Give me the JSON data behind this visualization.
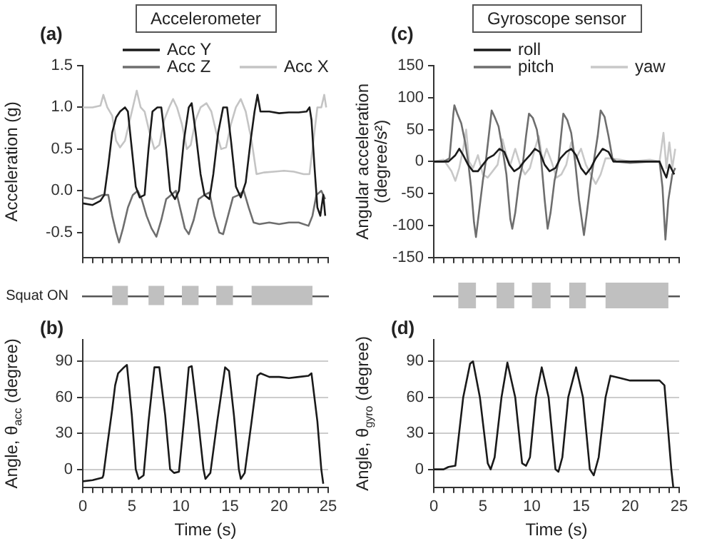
{
  "chart_data": [
    {
      "type": "line",
      "title": "Accelerometer",
      "ylabel": "Acceleration (g)",
      "annotations": [
        "(a)"
      ],
      "xlim": [
        0,
        25
      ],
      "xticks": [
        0,
        {
          "value": 1,
          "label": null
        },
        {
          "value": 2,
          "label": null
        },
        {
          "value": 3,
          "label": null
        },
        {
          "value": 4,
          "label": null
        },
        5,
        {
          "value": 6,
          "label": null
        },
        {
          "value": 7,
          "label": null
        },
        {
          "value": 8,
          "label": null
        },
        {
          "value": 9,
          "label": null
        },
        10,
        {
          "value": 11,
          "label": null
        },
        {
          "value": 12,
          "label": null
        },
        {
          "value": 13,
          "label": null
        },
        {
          "value": 14,
          "label": null
        },
        15,
        {
          "value": 16,
          "label": null
        },
        {
          "value": 17,
          "label": null
        },
        {
          "value": 18,
          "label": null
        },
        {
          "value": 19,
          "label": null
        },
        20,
        {
          "value": 21,
          "label": null
        },
        {
          "value": 22,
          "label": null
        },
        {
          "value": 23,
          "label": null
        },
        {
          "value": 24,
          "label": null
        },
        25
      ],
      "ylim": [
        -0.8,
        1.5
      ],
      "yticks": [
        {
          "value": -0.5,
          "label": "-0.5"
        },
        {
          "value": 0,
          "label": "0.0"
        },
        {
          "value": 0.5,
          "label": "0.5"
        },
        {
          "value": 1,
          "label": "1.0"
        },
        {
          "value": 1.5,
          "label": "1.5"
        }
      ],
      "tick_labels": "y",
      "legend": "top",
      "series": [
        {
          "name": "Acc Y",
          "color": "#1a1a1a",
          "x": [
            0,
            1,
            1.8,
            2.2,
            2.6,
            3,
            3.4,
            3.8,
            4.3,
            4.6,
            5,
            5.4,
            5.8,
            6.3,
            6.7,
            7.1,
            7.6,
            8,
            8.5,
            8.9,
            9.4,
            9.8,
            10.3,
            10.8,
            11.1,
            11.5,
            12,
            12.4,
            12.9,
            13.3,
            13.8,
            14.3,
            14.7,
            15.1,
            15.6,
            16.1,
            16.6,
            17.1,
            17.5,
            17.8,
            18.1,
            19,
            20,
            21,
            22,
            22.8,
            23.1,
            23.3,
            23.6,
            23.9,
            24.2,
            24.5,
            24.7
          ],
          "values": [
            -0.15,
            -0.17,
            -0.12,
            -0.05,
            0.3,
            0.7,
            0.88,
            0.95,
            1.0,
            0.95,
            0.5,
            0.05,
            -0.08,
            -0.05,
            0.5,
            0.95,
            1.0,
            1.0,
            0.5,
            0.0,
            -0.1,
            0.0,
            0.6,
            1.0,
            1.05,
            0.7,
            0.2,
            -0.05,
            -0.1,
            0.2,
            0.7,
            1.0,
            1.0,
            0.6,
            0.05,
            -0.08,
            0.1,
            0.6,
            0.95,
            1.15,
            0.95,
            0.95,
            0.93,
            0.94,
            0.94,
            0.95,
            1.0,
            0.85,
            0.3,
            -0.2,
            -0.3,
            -0.05,
            -0.3
          ]
        },
        {
          "name": "Acc Z",
          "color": "#6e6e6e",
          "x": [
            0,
            1,
            2,
            2.6,
            3,
            3.4,
            3.7,
            4.1,
            4.6,
            5.1,
            5.6,
            6,
            6.5,
            7,
            7.5,
            8,
            8.5,
            9,
            9.5,
            9.9,
            10.4,
            10.8,
            11.3,
            11.8,
            12.4,
            12.9,
            13.4,
            13.9,
            14.3,
            14.8,
            15.3,
            15.9,
            16.4,
            16.9,
            17.4,
            18,
            19,
            20,
            21,
            22,
            23,
            23.4,
            23.8,
            24.3,
            24.7
          ],
          "values": [
            -0.08,
            -0.1,
            -0.05,
            -0.05,
            -0.3,
            -0.5,
            -0.62,
            -0.45,
            -0.2,
            -0.05,
            0.0,
            -0.1,
            -0.3,
            -0.45,
            -0.55,
            -0.35,
            -0.1,
            -0.05,
            0.0,
            -0.2,
            -0.45,
            -0.52,
            -0.35,
            -0.1,
            -0.05,
            -0.02,
            -0.3,
            -0.5,
            -0.52,
            -0.3,
            -0.08,
            -0.05,
            0.0,
            -0.2,
            -0.38,
            -0.4,
            -0.38,
            -0.4,
            -0.38,
            -0.38,
            -0.42,
            -0.3,
            -0.05,
            0.0,
            -0.1
          ]
        },
        {
          "name": "Acc X",
          "color": "#c4c4c4",
          "x": [
            0,
            1,
            1.8,
            2.1,
            2.5,
            3,
            3.4,
            3.8,
            4.3,
            4.7,
            5.1,
            5.5,
            5.9,
            6.3,
            6.8,
            7.3,
            7.8,
            8.3,
            8.8,
            9.2,
            9.6,
            10.1,
            10.6,
            11,
            11.5,
            12,
            12.6,
            13.1,
            13.6,
            14.1,
            14.6,
            15.1,
            15.6,
            16.1,
            16.6,
            17.2,
            17.7,
            18.5,
            19.5,
            20.5,
            21.5,
            22.5,
            23.1,
            23.5,
            23.9,
            24.3,
            24.6,
            24.8
          ],
          "values": [
            1.0,
            1.0,
            1.02,
            1.15,
            1.0,
            0.9,
            0.6,
            0.52,
            0.6,
            0.8,
            1.0,
            1.2,
            1.0,
            0.95,
            0.7,
            0.5,
            0.55,
            0.85,
            1.0,
            1.1,
            1.0,
            0.8,
            0.5,
            0.55,
            0.85,
            1.0,
            1.05,
            0.95,
            0.7,
            0.5,
            0.52,
            0.8,
            1.0,
            1.1,
            0.95,
            0.6,
            0.2,
            0.22,
            0.23,
            0.24,
            0.23,
            0.2,
            0.2,
            0.6,
            1.0,
            1.0,
            1.15,
            1.0
          ]
        }
      ]
    },
    {
      "type": "bar",
      "orientation": "horizontal",
      "categories": [
        "Squat ON"
      ],
      "xlim": [
        0,
        25
      ],
      "tick_labels": "y",
      "series": [
        {
          "color": "#c0c0c0",
          "values": [
            1.6
          ],
          "base": [
            3
          ]
        },
        {
          "color": "#c0c0c0",
          "values": [
            1.6
          ],
          "base": [
            6.7
          ]
        },
        {
          "color": "#c0c0c0",
          "values": [
            1.7
          ],
          "base": [
            10.1
          ]
        },
        {
          "color": "#c0c0c0",
          "values": [
            1.7
          ],
          "base": [
            13.6
          ]
        },
        {
          "color": "#c0c0c0",
          "values": [
            6.2
          ],
          "base": [
            17.2
          ]
        }
      ]
    },
    {
      "type": "line",
      "ylabel": "Angle, θ$_{acc}$ (degree)",
      "xlabel": "Time (s)",
      "annotations": [
        "(b)"
      ],
      "xlim": [
        0,
        25
      ],
      "xticks": [
        0,
        {
          "value": 1,
          "label": null
        },
        {
          "value": 2,
          "label": null
        },
        {
          "value": 3,
          "label": null
        },
        {
          "value": 4,
          "label": null
        },
        5,
        {
          "value": 6,
          "label": null
        },
        {
          "value": 7,
          "label": null
        },
        {
          "value": 8,
          "label": null
        },
        {
          "value": 9,
          "label": null
        },
        10,
        {
          "value": 11,
          "label": null
        },
        {
          "value": 12,
          "label": null
        },
        {
          "value": 13,
          "label": null
        },
        {
          "value": 14,
          "label": null
        },
        15,
        {
          "value": 16,
          "label": null
        },
        {
          "value": 17,
          "label": null
        },
        {
          "value": 18,
          "label": null
        },
        {
          "value": 19,
          "label": null
        },
        20,
        {
          "value": 21,
          "label": null
        },
        {
          "value": 22,
          "label": null
        },
        {
          "value": 23,
          "label": null
        },
        {
          "value": 24,
          "label": null
        },
        25
      ],
      "ylim": [
        -15,
        108
      ],
      "yticks": [
        0,
        30,
        60,
        90
      ],
      "grid": "y",
      "series": [
        {
          "color": "#1a1a1a",
          "x": [
            0,
            1,
            2,
            2.1,
            2.5,
            3,
            3.3,
            3.6,
            4.2,
            4.5,
            5,
            5.4,
            5.7,
            6.2,
            6.7,
            7.3,
            7.8,
            8.4,
            8.9,
            9.3,
            9.8,
            10.3,
            10.8,
            11.1,
            11.7,
            12.3,
            12.5,
            13,
            13.7,
            14.5,
            14.9,
            15.4,
            15.9,
            16.1,
            16.5,
            17.2,
            17.8,
            18.1,
            19,
            20,
            21,
            22,
            23,
            23.3,
            23.9,
            24.3,
            24.5
          ],
          "values": [
            -10,
            -9,
            -7,
            -5,
            20,
            50,
            70,
            80,
            85,
            87,
            45,
            0,
            -8,
            -5,
            40,
            85,
            85,
            45,
            0,
            -3,
            -2,
            40,
            85,
            86,
            45,
            0,
            -8,
            -3,
            40,
            85,
            82,
            45,
            0,
            -8,
            -3,
            40,
            78,
            80,
            77,
            77,
            76,
            77,
            78,
            80,
            40,
            0,
            -12
          ]
        }
      ]
    },
    {
      "type": "line",
      "title": "Gyroscope sensor",
      "ylabel": "Angular acceleration\n(degree/s²)",
      "annotations": [
        "(c)"
      ],
      "xlim": [
        0,
        25
      ],
      "xticks": [
        0,
        {
          "value": 1,
          "label": null
        },
        {
          "value": 2,
          "label": null
        },
        {
          "value": 3,
          "label": null
        },
        {
          "value": 4,
          "label": null
        },
        5,
        {
          "value": 6,
          "label": null
        },
        {
          "value": 7,
          "label": null
        },
        {
          "value": 8,
          "label": null
        },
        {
          "value": 9,
          "label": null
        },
        10,
        {
          "value": 11,
          "label": null
        },
        {
          "value": 12,
          "label": null
        },
        {
          "value": 13,
          "label": null
        },
        {
          "value": 14,
          "label": null
        },
        15,
        {
          "value": 16,
          "label": null
        },
        {
          "value": 17,
          "label": null
        },
        {
          "value": 18,
          "label": null
        },
        {
          "value": 19,
          "label": null
        },
        20,
        {
          "value": 21,
          "label": null
        },
        {
          "value": 22,
          "label": null
        },
        {
          "value": 23,
          "label": null
        },
        {
          "value": 24,
          "label": null
        },
        25
      ],
      "ylim": [
        -150,
        150
      ],
      "yticks": [
        -150,
        -100,
        -50,
        0,
        50,
        100,
        150
      ],
      "tick_labels": "y",
      "legend": "top",
      "series": [
        {
          "name": "roll",
          "color": "#1a1a1a",
          "x": [
            0,
            1.5,
            2.2,
            2.6,
            3,
            3.5,
            4,
            4.5,
            5,
            5.5,
            6.1,
            6.7,
            7.2,
            7.7,
            8.2,
            8.7,
            9.2,
            9.8,
            10.3,
            10.8,
            11.3,
            11.8,
            12.4,
            12.9,
            13.5,
            14,
            14.5,
            15,
            15.5,
            16,
            16.5,
            17.2,
            17.8,
            18.3,
            20,
            22,
            23,
            23.4,
            23.7,
            24,
            24.5
          ],
          "values": [
            0,
            0,
            10,
            20,
            10,
            -5,
            -15,
            -15,
            -5,
            5,
            10,
            20,
            15,
            -5,
            -15,
            -10,
            0,
            10,
            20,
            15,
            -5,
            -15,
            -10,
            5,
            15,
            20,
            10,
            -10,
            -20,
            -10,
            5,
            20,
            15,
            0,
            0,
            0,
            0,
            -15,
            -25,
            -5,
            -20
          ]
        },
        {
          "name": "pitch",
          "color": "#6e6e6e",
          "x": [
            0,
            1,
            1.6,
            1.8,
            2,
            2.1,
            2.4,
            2.8,
            3.2,
            3.5,
            3.8,
            4.1,
            4.3,
            4.6,
            5,
            5.3,
            5.6,
            5.9,
            6.2,
            6.6,
            7,
            7.4,
            7.8,
            8,
            8.3,
            8.7,
            9.1,
            9.4,
            9.7,
            10.1,
            10.5,
            10.9,
            11.3,
            11.6,
            11.9,
            12.3,
            12.7,
            13,
            13.2,
            13.6,
            14,
            14.4,
            14.8,
            15.3,
            15.6,
            16,
            16.3,
            16.7,
            17,
            17.4,
            17.8,
            18.2,
            18.6,
            20,
            22,
            23,
            23.3,
            23.6,
            23.9,
            24.3,
            24.6
          ],
          "values": [
            0,
            0,
            5,
            40,
            75,
            88,
            75,
            60,
            30,
            0,
            -40,
            -95,
            -118,
            -80,
            -30,
            0,
            40,
            80,
            70,
            55,
            20,
            -20,
            -90,
            -105,
            -80,
            -30,
            0,
            40,
            75,
            68,
            50,
            10,
            -60,
            -105,
            -80,
            -30,
            0,
            45,
            75,
            65,
            45,
            0,
            -60,
            -115,
            -80,
            -30,
            0,
            40,
            80,
            70,
            40,
            5,
            0,
            -2,
            0,
            0,
            -40,
            -122,
            -60,
            -20,
            -10
          ]
        },
        {
          "name": "yaw",
          "color": "#c8c8c8",
          "x": [
            0,
            1,
            1.8,
            2.2,
            2.6,
            3,
            3.3,
            3.6,
            4,
            4.5,
            5,
            5.5,
            6,
            6.5,
            7,
            7.4,
            7.8,
            8.3,
            8.8,
            9.3,
            9.8,
            10.3,
            10.7,
            11.1,
            11.5,
            12,
            12.5,
            13,
            13.5,
            14,
            14.5,
            15,
            15.5,
            16,
            16.5,
            17,
            17.5,
            18,
            19,
            20,
            22,
            23,
            23.4,
            23.7,
            24,
            24.3,
            24.6
          ],
          "values": [
            0,
            3,
            -15,
            -30,
            -10,
            20,
            50,
            0,
            -10,
            10,
            -20,
            -25,
            -15,
            -5,
            35,
            10,
            -5,
            20,
            -5,
            -20,
            -10,
            20,
            40,
            0,
            20,
            0,
            -25,
            -20,
            -5,
            30,
            5,
            20,
            -5,
            -20,
            -35,
            -20,
            5,
            5,
            3,
            0,
            3,
            0,
            45,
            -10,
            30,
            -10,
            20
          ]
        }
      ]
    },
    {
      "type": "bar",
      "orientation": "horizontal",
      "categories": [
        null
      ],
      "xlim": [
        0,
        25
      ],
      "tick_labels": false,
      "series": [
        {
          "color": "#c0c0c0",
          "values": [
            1.8
          ],
          "base": [
            2.5
          ]
        },
        {
          "color": "#c0c0c0",
          "values": [
            1.8
          ],
          "base": [
            6.4
          ]
        },
        {
          "color": "#c0c0c0",
          "values": [
            1.9
          ],
          "base": [
            10
          ]
        },
        {
          "color": "#c0c0c0",
          "values": [
            1.7
          ],
          "base": [
            13.8
          ]
        },
        {
          "color": "#c0c0c0",
          "values": [
            6.4
          ],
          "base": [
            17.5
          ]
        }
      ]
    },
    {
      "type": "line",
      "ylabel": "Angle, θ$_{gyro}$ (degree)",
      "xlabel": "Time (s)",
      "annotations": [
        "(d)"
      ],
      "xlim": [
        0,
        25
      ],
      "xticks": [
        0,
        {
          "value": 1,
          "label": null
        },
        {
          "value": 2,
          "label": null
        },
        {
          "value": 3,
          "label": null
        },
        {
          "value": 4,
          "label": null
        },
        5,
        {
          "value": 6,
          "label": null
        },
        {
          "value": 7,
          "label": null
        },
        {
          "value": 8,
          "label": null
        },
        {
          "value": 9,
          "label": null
        },
        10,
        {
          "value": 11,
          "label": null
        },
        {
          "value": 12,
          "label": null
        },
        {
          "value": 13,
          "label": null
        },
        {
          "value": 14,
          "label": null
        },
        15,
        {
          "value": 16,
          "label": null
        },
        {
          "value": 17,
          "label": null
        },
        {
          "value": 18,
          "label": null
        },
        {
          "value": 19,
          "label": null
        },
        20,
        {
          "value": 21,
          "label": null
        },
        {
          "value": 22,
          "label": null
        },
        {
          "value": 23,
          "label": null
        },
        {
          "value": 24,
          "label": null
        },
        25
      ],
      "ylim": [
        -15,
        108
      ],
      "yticks": [
        0,
        30,
        60,
        90
      ],
      "grid": "y",
      "series": [
        {
          "color": "#1a1a1a",
          "x": [
            0,
            1,
            1.5,
            2.2,
            3,
            3.7,
            4,
            4.7,
            5.5,
            5.8,
            6.2,
            6.9,
            7.5,
            8.3,
            9,
            9.4,
            9.8,
            10.4,
            11,
            11.7,
            12.4,
            12.7,
            13.1,
            13.7,
            14.5,
            15.2,
            15.9,
            16.3,
            16.8,
            17.5,
            18,
            19,
            20,
            21,
            22,
            23,
            23.5,
            24.2,
            24.4
          ],
          "values": [
            0,
            0,
            2,
            3,
            60,
            88,
            90,
            60,
            5,
            0,
            10,
            60,
            89,
            60,
            5,
            3,
            10,
            60,
            85,
            60,
            0,
            -2,
            10,
            60,
            85,
            60,
            0,
            -5,
            10,
            60,
            78,
            76,
            74,
            74,
            74,
            74,
            70,
            0,
            -15
          ]
        }
      ]
    }
  ]
}
